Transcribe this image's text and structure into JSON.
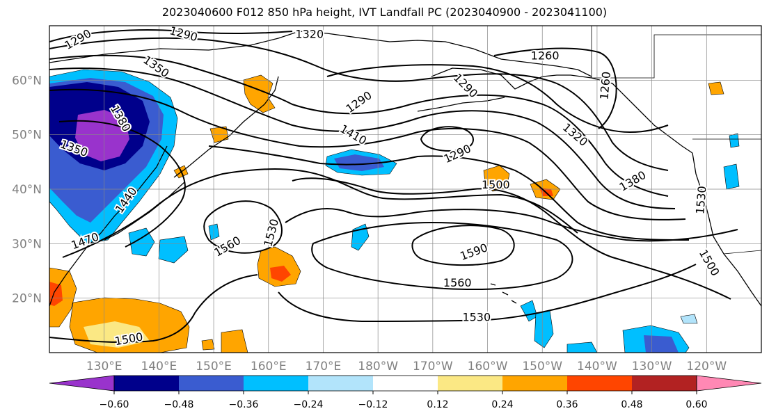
{
  "title": "2023040600 F012 850 hPa height, IVT Landfall PC (2023040900 - 2023041100)",
  "map": {
    "lon_range": [
      120,
      250
    ],
    "lat_range": [
      10,
      70
    ],
    "lon_ticks": [
      {
        "lon": 130,
        "label": "130°E"
      },
      {
        "lon": 140,
        "label": "140°E"
      },
      {
        "lon": 150,
        "label": "150°E"
      },
      {
        "lon": 160,
        "label": "160°E"
      },
      {
        "lon": 170,
        "label": "170°E"
      },
      {
        "lon": 180,
        "label": "180°W"
      },
      {
        "lon": 190,
        "label": "170°W"
      },
      {
        "lon": 200,
        "label": "160°W"
      },
      {
        "lon": 210,
        "label": "150°W"
      },
      {
        "lon": 220,
        "label": "140°W"
      },
      {
        "lon": 230,
        "label": "130°W"
      },
      {
        "lon": 240,
        "label": "120°W"
      }
    ],
    "lat_ticks": [
      {
        "lat": 20,
        "label": "20°N"
      },
      {
        "lat": 30,
        "label": "30°N"
      },
      {
        "lat": 40,
        "label": "40°N"
      },
      {
        "lat": 50,
        "label": "50°N"
      },
      {
        "lat": 60,
        "label": "60°N"
      }
    ],
    "contour_labels": [
      {
        "text": "1290",
        "lon": 125.2,
        "lat": 67.5,
        "rot": -30
      },
      {
        "text": "1290",
        "lon": 144.5,
        "lat": 68.5,
        "rot": 15
      },
      {
        "text": "1320",
        "lon": 167.5,
        "lat": 68.5,
        "rot": 0
      },
      {
        "text": "1260",
        "lon": 210.5,
        "lat": 64.5,
        "rot": 0
      },
      {
        "text": "1350",
        "lon": 139.5,
        "lat": 62.5,
        "rot": 35
      },
      {
        "text": "1290",
        "lon": 196,
        "lat": 59,
        "rot": 45
      },
      {
        "text": "1260",
        "lon": 221.5,
        "lat": 59,
        "rot": -85
      },
      {
        "text": "1290",
        "lon": 176.5,
        "lat": 56,
        "rot": -35
      },
      {
        "text": "1380",
        "lon": 133,
        "lat": 53,
        "rot": 60
      },
      {
        "text": "1410",
        "lon": 175.5,
        "lat": 50,
        "rot": 30
      },
      {
        "text": "1350",
        "lon": 124.5,
        "lat": 47.5,
        "rot": 20
      },
      {
        "text": "1320",
        "lon": 216,
        "lat": 50,
        "rot": 40
      },
      {
        "text": "1290",
        "lon": 194.5,
        "lat": 46.5,
        "rot": -25
      },
      {
        "text": "1500",
        "lon": 201.5,
        "lat": 40.8,
        "rot": 0
      },
      {
        "text": "1380",
        "lon": 226.5,
        "lat": 41.5,
        "rot": -30
      },
      {
        "text": "1440",
        "lon": 134,
        "lat": 38,
        "rot": -55
      },
      {
        "text": "1530",
        "lon": 239,
        "lat": 38,
        "rot": -85
      },
      {
        "text": "1530",
        "lon": 160.5,
        "lat": 32,
        "rot": -75
      },
      {
        "text": "1560",
        "lon": 152.5,
        "lat": 29.5,
        "rot": -30
      },
      {
        "text": "1470",
        "lon": 126.5,
        "lat": 30.5,
        "rot": -20
      },
      {
        "text": "1590",
        "lon": 197.5,
        "lat": 28.5,
        "rot": -20
      },
      {
        "text": "1500",
        "lon": 240.5,
        "lat": 26.5,
        "rot": 60
      },
      {
        "text": "1560",
        "lon": 194.5,
        "lat": 22.8,
        "rot": 0
      },
      {
        "text": "1530",
        "lon": 198,
        "lat": 16.5,
        "rot": 0
      },
      {
        "text": "1500",
        "lon": 134.5,
        "lat": 12.5,
        "rot": -10
      }
    ]
  },
  "colorbar": {
    "colors": [
      "#9933cc",
      "#00008b",
      "#3a5cd0",
      "#00bfff",
      "#b2e4fb",
      "#ffffff",
      "#fbe884",
      "#ffa500",
      "#ff4500",
      "#b22222",
      "#ff88b4"
    ],
    "ticks": [
      "−0.60",
      "−0.48",
      "−0.36",
      "−0.24",
      "−0.12",
      "0.12",
      "0.24",
      "0.36",
      "0.48",
      "0.60"
    ],
    "extend": "both"
  }
}
